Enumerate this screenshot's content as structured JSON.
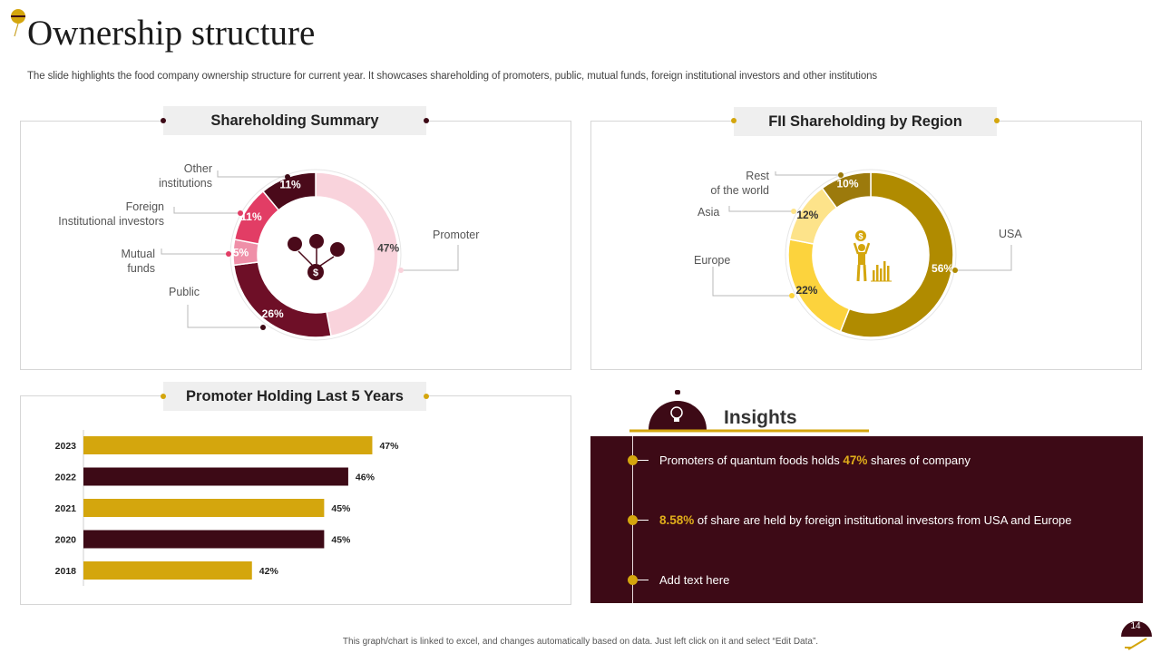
{
  "header": {
    "title": "Ownership structure",
    "subtitle": "The slide highlights the food company ownership structure for current year.  It showcases shareholding of promoters, public, mutual funds, foreign institutional investors and other institutions"
  },
  "panels": {
    "shareholding": {
      "title": "Shareholding Summary"
    },
    "fii": {
      "title": "FII Shareholding by Region"
    },
    "promoter": {
      "title": "Promoter Holding Last 5 Years"
    },
    "insights": {
      "title": "Insights",
      "items": [
        {
          "pre": "Promoters of quantum foods holds ",
          "hl": "47%",
          "post": " shares of company"
        },
        {
          "pre": "",
          "hl": "8.58%",
          "post": " of share are held by foreign institutional investors from USA and Europe"
        },
        {
          "pre": "Add text here",
          "hl": "",
          "post": ""
        }
      ]
    }
  },
  "labels": {
    "other_1": "Other",
    "other_2": "institutions",
    "fii_1": "Foreign",
    "fii_2": "Institutional investors",
    "mf_1": "Mutual",
    "mf_2": "funds",
    "public": "Public",
    "promoter": "Promoter",
    "rest_1": "Rest",
    "rest_2": "of the world",
    "asia": "Asia",
    "europe": "Europe",
    "usa": "USA"
  },
  "chart_data": [
    {
      "type": "pie",
      "title": "Shareholding Summary",
      "slices": [
        {
          "name": "Promoter",
          "value": 47,
          "label": "47%",
          "color": "#f9d3dc"
        },
        {
          "name": "Public",
          "value": 26,
          "label": "26%",
          "color": "#6e0f27"
        },
        {
          "name": "Mutual funds",
          "value": 5,
          "label": "5%",
          "color": "#ef8fa8"
        },
        {
          "name": "Foreign Institutional investors",
          "value": 11,
          "label": "11%",
          "color": "#e23d65"
        },
        {
          "name": "Other institutions",
          "value": 11,
          "label": "11%",
          "color": "#4a0a1a"
        }
      ]
    },
    {
      "type": "pie",
      "title": "FII Shareholding by Region",
      "slices": [
        {
          "name": "USA",
          "value": 56,
          "label": "56%",
          "color": "#b08b00"
        },
        {
          "name": "Europe",
          "value": 22,
          "label": "22%",
          "color": "#fcd33d"
        },
        {
          "name": "Asia",
          "value": 12,
          "label": "12%",
          "color": "#fde38a"
        },
        {
          "name": "Rest of the world",
          "value": 10,
          "label": "10%",
          "color": "#9c7a0c"
        }
      ]
    },
    {
      "type": "bar",
      "orientation": "horizontal",
      "title": "Promoter Holding Last 5 Years",
      "categories": [
        "2023",
        "2022",
        "2021",
        "2020",
        "2018"
      ],
      "values": [
        47,
        46,
        45,
        45,
        42
      ],
      "value_labels": [
        "47%",
        "46%",
        "45%",
        "45%",
        "42%"
      ],
      "colors": [
        "#d4a60d",
        "#3d0a16",
        "#d4a60d",
        "#3d0a16",
        "#d4a60d"
      ],
      "xlim": [
        35,
        48
      ]
    }
  ],
  "footer": {
    "note": "This graph/chart is linked to excel, and changes automatically based on data. Just left click on it and select “Edit Data”.",
    "page_number": "14"
  },
  "colors": {
    "maroon": "#3d0a16",
    "gold": "#d4a60d",
    "highlight": "#e0ae1a"
  }
}
